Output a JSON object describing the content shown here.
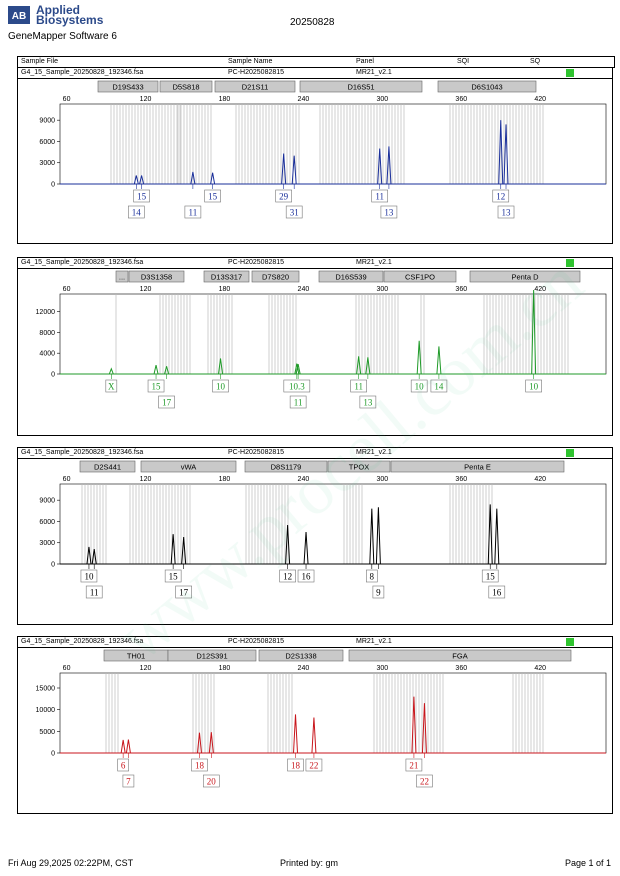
{
  "header": {
    "brand_line1": "Applied",
    "brand_line2": "Biosystems",
    "logo_text": "AB",
    "software": "GeneMapper Software 6",
    "run_date": "20250828"
  },
  "columns": {
    "sample_file": "Sample File",
    "sample_name": "Sample Name",
    "panel": "Panel",
    "sqi": "SQI",
    "sq": "SQ"
  },
  "watermark": "www.procell.com.cn",
  "footer": {
    "datetime": "Fri Aug 29,2025 02:22PM, CST",
    "printed_by": "Printed by: gm",
    "page": "Page 1 of 1"
  },
  "colors": {
    "blue": "#1a2f9a",
    "green": "#1f9a28",
    "black": "#000000",
    "red": "#c8161c",
    "status_ok": "#2fc42f"
  },
  "chart_data": [
    {
      "type": "line",
      "dye": "blue",
      "sample_file": "G4_15_Sample_20250828_192346.fsa",
      "sample_name": "PC-H2025082815",
      "panel": "MR21_v2.1",
      "x_ticks": [
        60,
        120,
        180,
        240,
        300,
        360,
        420
      ],
      "xlim": [
        55,
        470
      ],
      "y_ticks": [
        0,
        3000,
        6000,
        9000
      ],
      "ylim": [
        0,
        11000
      ],
      "markers": [
        "D19S433",
        "D5S818",
        "D21S11",
        "D16S51",
        "D6S1043"
      ],
      "peaks": [
        {
          "x": 113,
          "y": 1200,
          "label": "14"
        },
        {
          "x": 117,
          "y": 1200,
          "label": "15"
        },
        {
          "x": 156,
          "y": 1700,
          "label": "11"
        },
        {
          "x": 171,
          "y": 1600,
          "label": "15"
        },
        {
          "x": 225,
          "y": 4300,
          "label": "29"
        },
        {
          "x": 233,
          "y": 4000,
          "label": "31"
        },
        {
          "x": 298,
          "y": 5000,
          "label": "11"
        },
        {
          "x": 305,
          "y": 5300,
          "label": "13"
        },
        {
          "x": 390,
          "y": 9000,
          "label": "12"
        },
        {
          "x": 394,
          "y": 8400,
          "label": "13"
        }
      ]
    },
    {
      "type": "line",
      "dye": "green",
      "sample_file": "G4_15_Sample_20250828_192346.fsa",
      "sample_name": "PC-H2025082815",
      "panel": "MR21_v2.1",
      "x_ticks": [
        60,
        120,
        180,
        240,
        300,
        360,
        420
      ],
      "xlim": [
        55,
        470
      ],
      "y_ticks": [
        0,
        4000,
        8000,
        12000
      ],
      "ylim": [
        0,
        15000
      ],
      "markers": [
        "...",
        "D3S1358",
        "D13S317",
        "D7S820",
        "D16S539",
        "CSF1PO",
        "Penta D"
      ],
      "peaks": [
        {
          "x": 94,
          "y": 1000,
          "label": "X"
        },
        {
          "x": 128,
          "y": 1700,
          "label": "15"
        },
        {
          "x": 136,
          "y": 1500,
          "label": "17"
        },
        {
          "x": 177,
          "y": 3000,
          "label": "10"
        },
        {
          "x": 235,
          "y": 2000,
          "label": "10.3"
        },
        {
          "x": 236,
          "y": 1900,
          "label": "11"
        },
        {
          "x": 282,
          "y": 3400,
          "label": "11"
        },
        {
          "x": 289,
          "y": 3200,
          "label": "13"
        },
        {
          "x": 328,
          "y": 6400,
          "label": "10"
        },
        {
          "x": 343,
          "y": 5300,
          "label": "14"
        },
        {
          "x": 415,
          "y": 17000,
          "label": "10"
        }
      ]
    },
    {
      "type": "line",
      "dye": "black",
      "sample_file": "G4_15_Sample_20250828_192346.fsa",
      "sample_name": "PC-H2025082815",
      "panel": "MR21_v2.1",
      "x_ticks": [
        60,
        120,
        180,
        240,
        300,
        360,
        420
      ],
      "xlim": [
        55,
        470
      ],
      "y_ticks": [
        0,
        3000,
        6000,
        9000
      ],
      "ylim": [
        0,
        11000
      ],
      "markers": [
        "D2S441",
        "vWA",
        "D8S1179",
        "TPOX",
        "Penta E"
      ],
      "peaks": [
        {
          "x": 77,
          "y": 2400,
          "label": "10"
        },
        {
          "x": 81,
          "y": 2100,
          "label": "11"
        },
        {
          "x": 141,
          "y": 4200,
          "label": "15"
        },
        {
          "x": 149,
          "y": 3800,
          "label": "17"
        },
        {
          "x": 228,
          "y": 5500,
          "label": "12"
        },
        {
          "x": 242,
          "y": 4500,
          "label": "16"
        },
        {
          "x": 292,
          "y": 7800,
          "label": "8"
        },
        {
          "x": 297,
          "y": 8000,
          "label": "9"
        },
        {
          "x": 382,
          "y": 8400,
          "label": "15"
        },
        {
          "x": 387,
          "y": 7800,
          "label": "16"
        }
      ]
    },
    {
      "type": "line",
      "dye": "red",
      "sample_file": "G4_15_Sample_20250828_192346.fsa",
      "sample_name": "PC-H2025082815",
      "panel": "MR21_v2.1",
      "x_ticks": [
        60,
        120,
        180,
        240,
        300,
        360,
        420
      ],
      "xlim": [
        55,
        470
      ],
      "y_ticks": [
        0,
        5000,
        10000,
        15000
      ],
      "ylim": [
        0,
        18000
      ],
      "markers": [
        "TH01",
        "D12S391",
        "D2S1338",
        "FGA"
      ],
      "peaks": [
        {
          "x": 103,
          "y": 3000,
          "label": "6"
        },
        {
          "x": 107,
          "y": 3100,
          "label": "7"
        },
        {
          "x": 161,
          "y": 4700,
          "label": "18"
        },
        {
          "x": 170,
          "y": 4800,
          "label": "20"
        },
        {
          "x": 234,
          "y": 8900,
          "label": "18"
        },
        {
          "x": 248,
          "y": 8200,
          "label": "22"
        },
        {
          "x": 324,
          "y": 13000,
          "label": "21"
        },
        {
          "x": 332,
          "y": 11500,
          "label": "22"
        }
      ]
    }
  ]
}
